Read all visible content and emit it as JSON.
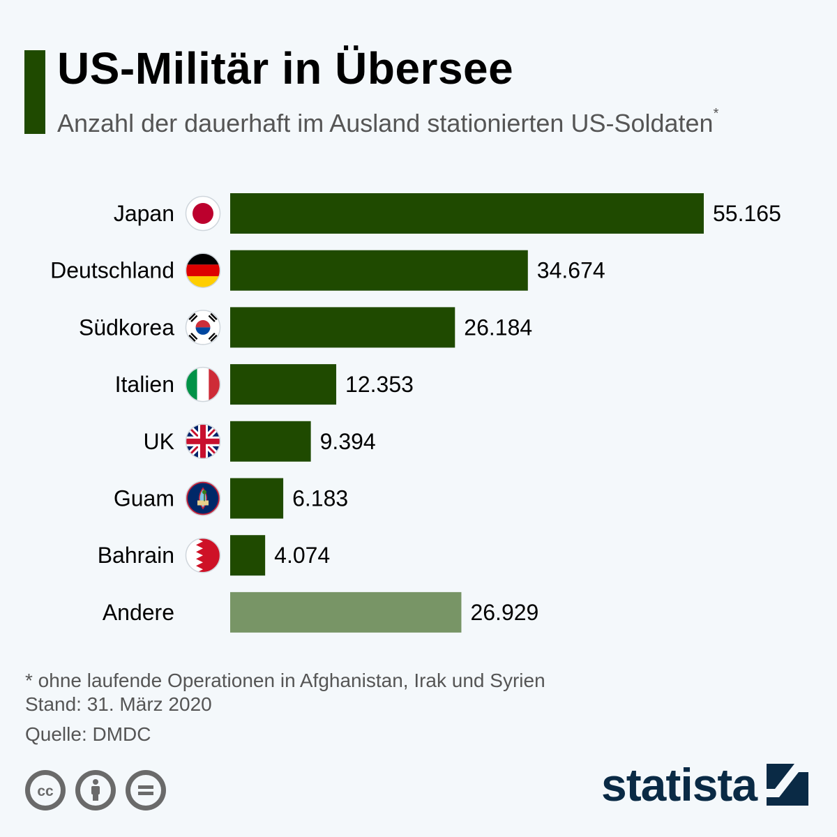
{
  "header": {
    "title": "US-Militär in Übersee",
    "subtitle": "Anzahl der dauerhaft im Ausland stationierten US-Soldaten",
    "subtitle_mark": "*"
  },
  "chart_data": {
    "type": "bar",
    "orientation": "horizontal",
    "categories": [
      "Japan",
      "Deutschland",
      "Südkorea",
      "Italien",
      "UK",
      "Guam",
      "Bahrain",
      "Andere"
    ],
    "values": [
      55165,
      34674,
      26184,
      12353,
      9394,
      6183,
      4074,
      26929
    ],
    "value_labels": [
      "55.165",
      "34.674",
      "26.184",
      "12.353",
      "9.394",
      "6.183",
      "4.074",
      "26.929"
    ],
    "flags": [
      "japan-flag",
      "germany-flag",
      "south-korea-flag",
      "italy-flag",
      "uk-flag",
      "guam-flag",
      "bahrain-flag",
      ""
    ],
    "bar_colors": [
      "#1f4a00",
      "#1f4a00",
      "#1f4a00",
      "#1f4a00",
      "#1f4a00",
      "#1f4a00",
      "#1f4a00",
      "#789566"
    ],
    "xlim": [
      0,
      55165
    ],
    "grid": false,
    "xlabel": "",
    "ylabel": ""
  },
  "footer": {
    "footnote": "* ohne laufende Operationen in Afghanistan, Irak und Syrien",
    "date": "Stand: 31. März 2020",
    "source": "Quelle: DMDC",
    "license_icons": [
      "cc-icon",
      "attribution-icon",
      "no-derivatives-icon"
    ],
    "logo_text": "statista"
  }
}
